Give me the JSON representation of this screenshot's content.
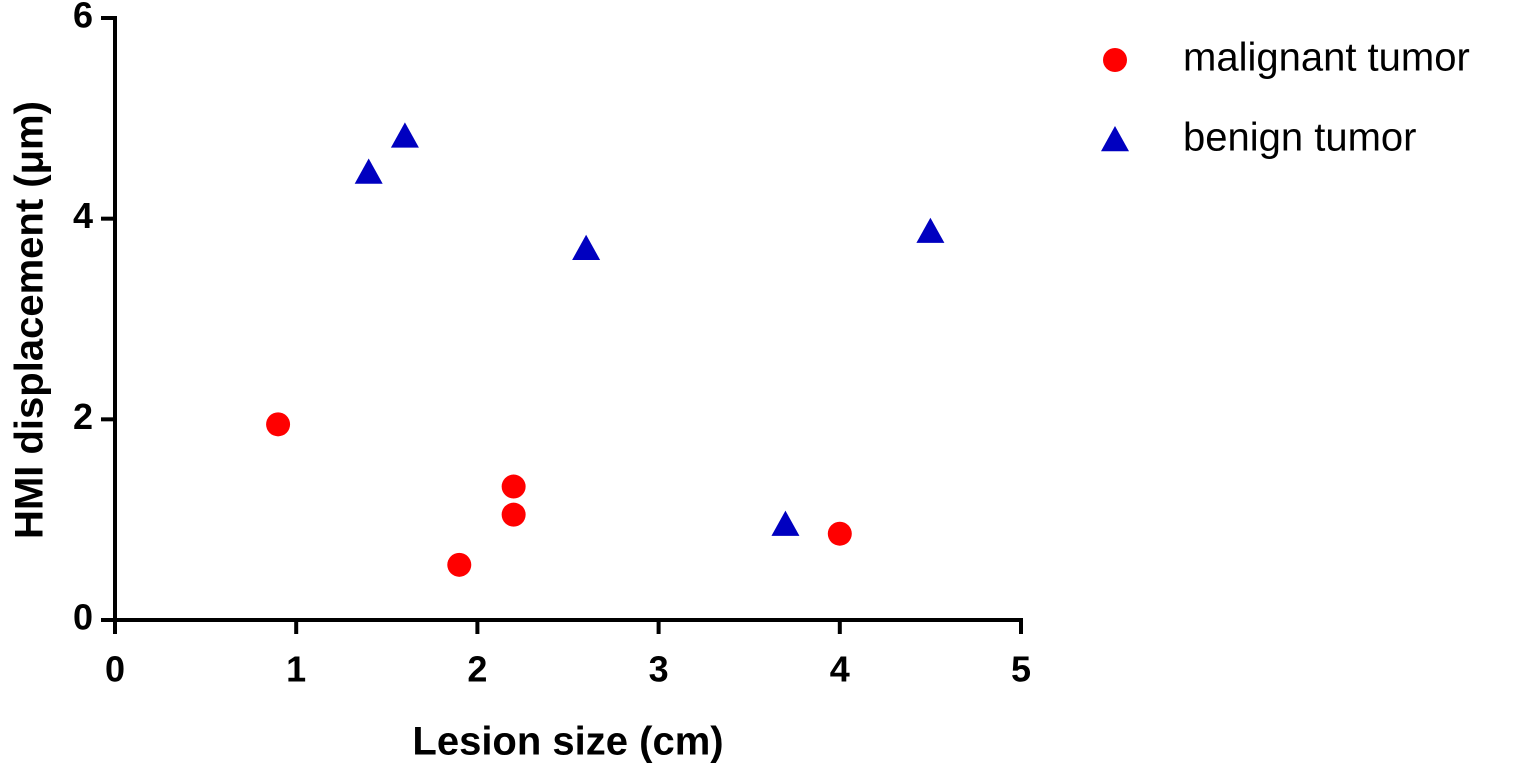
{
  "chart_data": {
    "type": "scatter",
    "x_label": "Lesion size (cm)",
    "y_label": "HMI displacement (μm)",
    "xlim": [
      0,
      5
    ],
    "xticks": [
      0,
      1,
      2,
      3,
      4,
      5
    ],
    "ylim": [
      0,
      6
    ],
    "yticks": [
      0,
      2,
      4,
      6
    ],
    "legend": "top-right",
    "series": [
      {
        "name": "malignant tumor",
        "color": "#ff0000",
        "marker": "circle",
        "x": [
          0.9,
          1.9,
          2.2,
          2.2,
          4.0
        ],
        "values": [
          1.95,
          0.55,
          1.33,
          1.05,
          0.86
        ]
      },
      {
        "name": "benign tumor",
        "color": "#0000c0",
        "marker": "triangle",
        "x": [
          1.4,
          1.6,
          2.6,
          4.5,
          3.7
        ],
        "values": [
          4.46,
          4.82,
          3.7,
          3.87,
          0.95
        ]
      }
    ]
  }
}
